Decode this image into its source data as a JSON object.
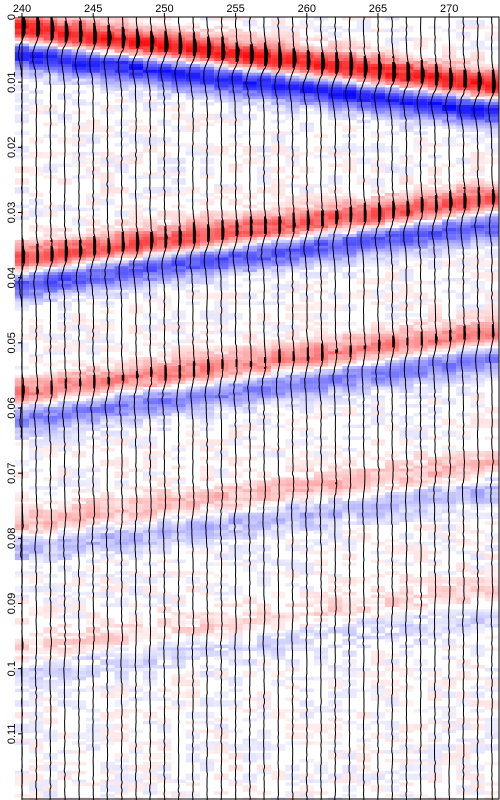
{
  "chart_data": {
    "type": "heatmap",
    "title": "",
    "xlabel": "",
    "ylabel": "",
    "x_axis_position": "top",
    "y_axis_orientation": "downward",
    "xlim": [
      240,
      273.5
    ],
    "ylim": [
      0,
      0.12
    ],
    "x_ticks": [
      "240",
      "245",
      "250",
      "255",
      "260",
      "265",
      "270"
    ],
    "x_tick_values": [
      240,
      245,
      250,
      255,
      260,
      265,
      270
    ],
    "y_ticks": [
      "0",
      "0.01",
      "0.02",
      "0.03",
      "0.04",
      "0.05",
      "0.06",
      "0.07",
      "0.08",
      "0.09",
      "0.1",
      "0.11"
    ],
    "y_tick_values": [
      0,
      0.01,
      0.02,
      0.03,
      0.04,
      0.05,
      0.06,
      0.07,
      0.08,
      0.09,
      0.1,
      0.11
    ],
    "traces": [
      240,
      241,
      242,
      243,
      244,
      245,
      246,
      247,
      248,
      249,
      250,
      251,
      252,
      253,
      254,
      255,
      256,
      257,
      258,
      259,
      260,
      261,
      262,
      263,
      264,
      265,
      266,
      267,
      268,
      269,
      270,
      271,
      272,
      273
    ],
    "grid": false,
    "wiggle_color": "#000000",
    "colormap": {
      "positive": "#e02020",
      "negative": "#1a1aff",
      "zero": "#ffffff"
    },
    "events": [
      {
        "t_start": 0.0036,
        "t_end": 0.0123,
        "amplitude": 1.0
      },
      {
        "t_start": 0.0389,
        "t_end": 0.0298,
        "amplitude": 0.75
      },
      {
        "t_start": 0.0594,
        "t_end": 0.0503,
        "amplitude": 0.55
      },
      {
        "t_start": 0.0795,
        "t_end": 0.0704,
        "amplitude": 0.3
      },
      {
        "t_start": 0.0985,
        "t_end": 0.0898,
        "amplitude": 0.16
      }
    ]
  }
}
